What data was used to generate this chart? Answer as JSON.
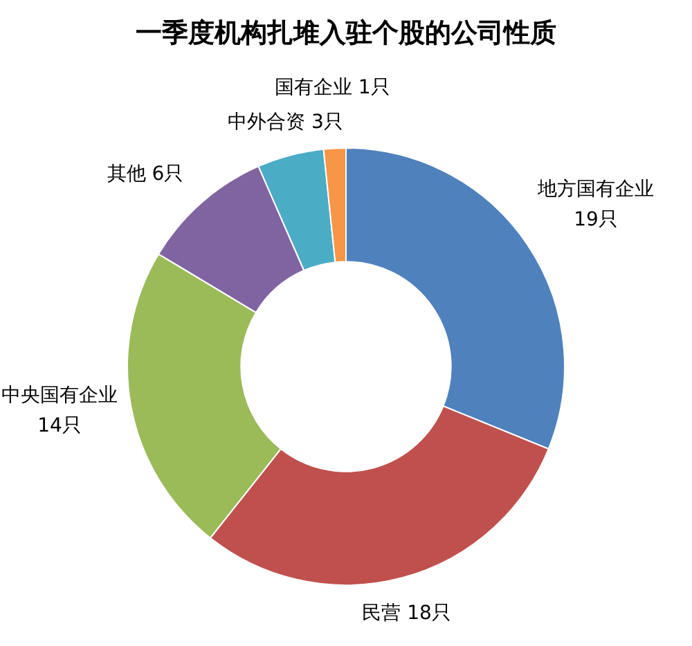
{
  "chart_data": {
    "type": "donut",
    "title": "一季度机构扎堆入驻个股的公司性质",
    "categories": [
      "地方国有企业",
      "民营",
      "中央国有企业",
      "其他",
      "中外合资",
      "国有企业"
    ],
    "values": [
      19,
      18,
      14,
      6,
      3,
      1
    ],
    "colors": [
      "#4f81bd",
      "#c0504d",
      "#9bbb59",
      "#8064a2",
      "#4bacc6",
      "#f79646"
    ],
    "value_labels": [
      "19只",
      "18只",
      "14只",
      "6只",
      "3只",
      "1只"
    ]
  }
}
